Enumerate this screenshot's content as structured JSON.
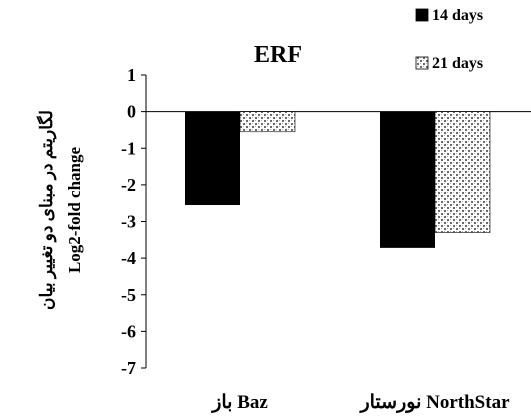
{
  "chart_data": {
    "type": "bar",
    "title": "ERF",
    "ylabel_fa": "لگاریتم در مبنای دو تغییر بیان",
    "ylabel": "Log2-fold change",
    "categories": [
      "باز Baz",
      "نورستار NorthStar"
    ],
    "series": [
      {
        "name": "14 days",
        "values": [
          -2.55,
          -3.72
        ]
      },
      {
        "name": "21 days",
        "values": [
          -0.55,
          -3.3
        ]
      }
    ],
    "ylim": [
      -7,
      1
    ],
    "yticks": [
      "1",
      "0",
      "-1",
      "-2",
      "-3",
      "-4",
      "-5",
      "-6",
      "-7"
    ],
    "grid": false,
    "legend_position": "top-right",
    "colors": {
      "14 days": "#000000",
      "21 days_pattern": "#9a9a9a"
    }
  }
}
